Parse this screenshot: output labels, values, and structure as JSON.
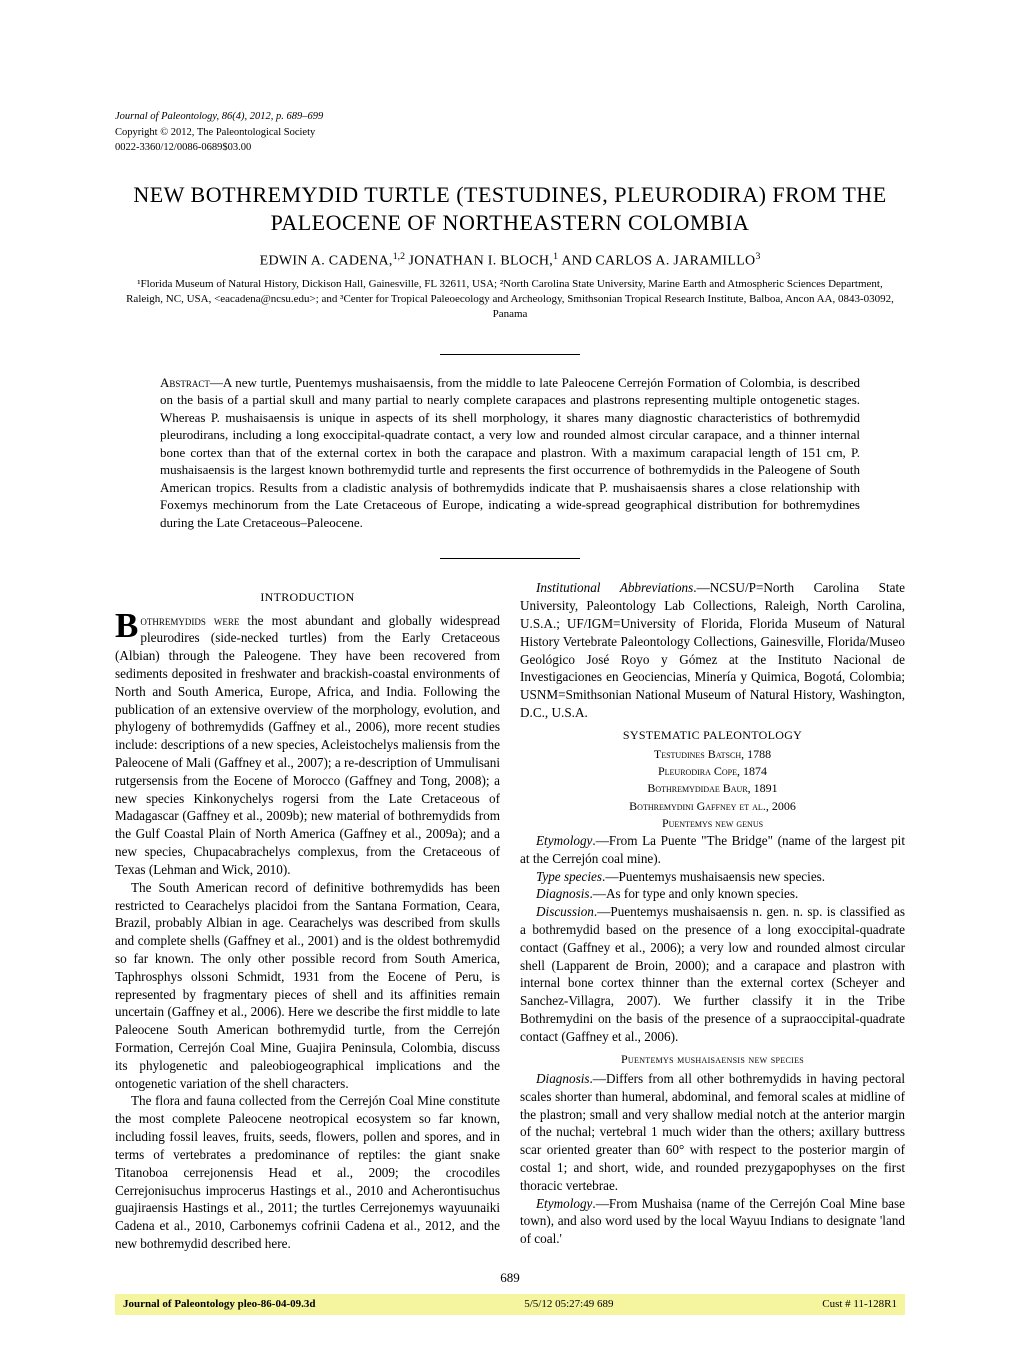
{
  "header": {
    "journal_info": "Journal of Paleontology, 86(4), 2012, p. 689–699",
    "copyright": "Copyright © 2012, The Paleontological Society",
    "issn": "0022-3360/12/0086-0689$03.00"
  },
  "title": "NEW BOTHREMYDID TURTLE (TESTUDINES, PLEURODIRA) FROM THE PALEOCENE OF NORTHEASTERN COLOMBIA",
  "authors": {
    "a1_name": "EDWIN A. CADENA,",
    "a1_sup": "1,2",
    "a2_name": "JONATHAN I. BLOCH,",
    "a2_sup": "1",
    "conj": " AND ",
    "a3_name": "CARLOS A. JARAMILLO",
    "a3_sup": "3"
  },
  "affiliations": "¹Florida Museum of Natural History, Dickison Hall, Gainesville, FL 32611, USA; ²North Carolina State University, Marine Earth and Atmospheric Sciences Department, Raleigh, NC, USA, <eacadena@ncsu.edu>; and ³Center for Tropical Paleoecology and Archeology, Smithsonian Tropical Research Institute, Balboa, Ancon AA, 0843-03092, Panama",
  "abstract": {
    "label": "Abstract",
    "text": "—A new turtle, Puentemys mushaisaensis, from the middle to late Paleocene Cerrejón Formation of Colombia, is described on the basis of a partial skull and many partial to nearly complete carapaces and plastrons representing multiple ontogenetic stages. Whereas P. mushaisaensis is unique in aspects of its shell morphology, it shares many diagnostic characteristics of bothremydid pleurodirans, including a long exoccipital-quadrate contact, a very low and rounded almost circular carapace, and a thinner internal bone cortex than that of the external cortex in both the carapace and plastron. With a maximum carapacial length of 151 cm, P. mushaisaensis is the largest known bothremydid turtle and represents the first occurrence of bothremydids in the Paleogene of South American tropics. Results from a cladistic analysis of bothremydids indicate that P. mushaisaensis shares a close relationship with Foxemys mechinorum from the Late Cretaceous of Europe, indicating a wide-spread geographical distribution for bothremydines during the Late Cretaceous–Paleocene."
  },
  "sections": {
    "intro_header": "INTRODUCTION",
    "intro_p1_dropword": "othremydids were",
    "intro_p1": " the most abundant and globally widespread pleurodires (side-necked turtles) from the Early Cretaceous (Albian) through the Paleogene. They have been recovered from sediments deposited in freshwater and brackish-coastal environments of North and South America, Europe, Africa, and India. Following the publication of an extensive overview of the morphology, evolution, and phylogeny of bothremydids (Gaffney et al., 2006), more recent studies include: descriptions of a new species, Acleistochelys maliensis from the Paleocene of Mali (Gaffney et al., 2007); a re-description of Ummulisani rutgersensis from the Eocene of Morocco (Gaffney and Tong, 2008); a new species Kinkonychelys rogersi from the Late Cretaceous of Madagascar (Gaffney et al., 2009b); new material of bothremydids from the Gulf Coastal Plain of North America (Gaffney et al., 2009a); and a new species, Chupacabrachelys complexus, from the Cretaceous of Texas (Lehman and Wick, 2010).",
    "intro_p2": "The South American record of definitive bothremydids has been restricted to Cearachelys placidoi from the Santana Formation, Ceara, Brazil, probably Albian in age. Cearachelys was described from skulls and complete shells (Gaffney et al., 2001) and is the oldest bothremydid so far known. The only other possible record from South America, Taphrosphys olssoni Schmidt, 1931 from the Eocene of Peru, is represented by fragmentary pieces of shell and its affinities remain uncertain (Gaffney et al., 2006). Here we describe the first middle to late Paleocene South American bothremydid turtle, from the Cerrejón Formation, Cerrejón Coal Mine, Guajira Peninsula, Colombia, discuss its phylogenetic and paleobiogeographical implications and the ontogenetic variation of the shell characters.",
    "intro_p3": "The flora and fauna collected from the Cerrejón Coal Mine constitute the most complete Paleocene neotropical ecosystem so far known, including fossil leaves, fruits, seeds, flowers, pollen and spores, and in terms of vertebrates a predominance of reptiles: the giant snake Titanoboa cerrejonensis Head et al., 2009; the crocodiles Cerrejonisuchus improcerus Hastings et al., 2010 and Acherontisuchus guajiraensis Hastings et al., 2011; the turtles Cerrejonemys wayuunaiki Cadena et al., 2010, Carbonemys cofrinii Cadena et al., 2012, and the new bothremydid described here.",
    "inst_abbrev_label": "Institutional Abbreviations",
    "inst_abbrev": ".—NCSU/P=North Carolina State University, Paleontology Lab Collections, Raleigh, North Carolina, U.S.A.; UF/IGM=University of Florida, Florida Museum of Natural History Vertebrate Paleontology Collections, Gainesville, Florida/Museo Geológico José Royo y Gómez at the Instituto Nacional de Investigaciones en Geociencias, Minería y Quimica, Bogotá, Colombia; USNM=Smithsonian National Museum of Natural History, Washington, D.C., U.S.A.",
    "sys_paleo_header": "SYSTEMATIC PALEONTOLOGY",
    "taxonomy": {
      "t1": "Testudines Batsch, 1788",
      "t2": "Pleurodira Cope, 1874",
      "t3": "Bothremydidae Baur, 1891",
      "t4": "Bothremydini Gaffney et al., 2006",
      "t5": "Puentemys new genus"
    },
    "etymology1_label": "Etymology",
    "etymology1": ".—From La Puente \"The Bridge\" (name of the largest pit at the Cerrejón coal mine).",
    "type_species_label": "Type species",
    "type_species": ".—Puentemys mushaisaensis new species.",
    "diagnosis1_label": "Diagnosis",
    "diagnosis1": ".—As for type and only known species.",
    "discussion_label": "Discussion",
    "discussion": ".—Puentemys mushaisaensis n. gen. n. sp. is classified as a bothremydid based on the presence of a long exoccipital-quadrate contact (Gaffney et al., 2006); a very low and rounded almost circular shell (Lapparent de Broin, 2000); and a carapace and plastron with internal bone cortex thinner than the external cortex (Scheyer and Sanchez-Villagra, 2007). We further classify it in the Tribe Bothremydini on the basis of the presence of a supraoccipital-quadrate contact (Gaffney et al., 2006).",
    "species_header": "Puentemys mushaisaensis new species",
    "diagnosis2_label": "Diagnosis",
    "diagnosis2": ".—Differs from all other bothremydids in having pectoral scales shorter than humeral, abdominal, and femoral scales at midline of the plastron; small and very shallow medial notch at the anterior margin of the nuchal; vertebral 1 much wider than the others; axillary buttress scar oriented greater than 60° with respect to the posterior margin of costal 1; and short, wide, and rounded prezygapophyses on the first thoracic vertebrae.",
    "etymology2_label": "Etymology",
    "etymology2": ".—From Mushaisa (name of the Cerrejón Coal Mine base town), and also word used by the local Wayuu Indians to designate 'land of coal.'"
  },
  "page_number": "689",
  "footer": {
    "left": "Journal of Paleontology   pleo-86-04-09.3d",
    "mid": "5/5/12   05:27:49      689",
    "right": "Cust # 11-128R1"
  },
  "colors": {
    "background": "#ffffff",
    "text": "#000000",
    "footer_bg": "#f5f5a0"
  }
}
